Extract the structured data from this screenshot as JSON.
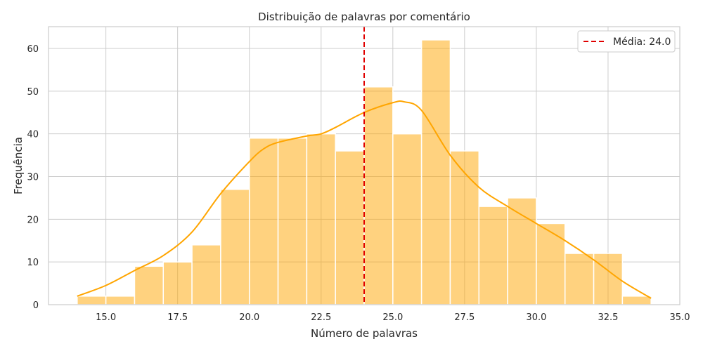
{
  "chart_data": {
    "type": "bar",
    "title": "Distribuição de palavras por comentário",
    "xlabel": "Número de palavras",
    "ylabel": "Frequência",
    "xlim": [
      13.0,
      35.0
    ],
    "ylim": [
      0,
      65.1
    ],
    "xticks": [
      "15.0",
      "17.5",
      "20.0",
      "22.5",
      "25.0",
      "27.5",
      "30.0",
      "32.5",
      "35.0"
    ],
    "yticks": [
      "0",
      "10",
      "20",
      "30",
      "40",
      "50",
      "60"
    ],
    "grid": true,
    "bins": [
      {
        "start": 14,
        "end": 15,
        "count": 2
      },
      {
        "start": 15,
        "end": 16,
        "count": 2
      },
      {
        "start": 16,
        "end": 17,
        "count": 9
      },
      {
        "start": 17,
        "end": 18,
        "count": 10
      },
      {
        "start": 18,
        "end": 19,
        "count": 14
      },
      {
        "start": 19,
        "end": 20,
        "count": 27
      },
      {
        "start": 20,
        "end": 21,
        "count": 39
      },
      {
        "start": 21,
        "end": 22,
        "count": 39
      },
      {
        "start": 22,
        "end": 23,
        "count": 40
      },
      {
        "start": 23,
        "end": 24,
        "count": 36
      },
      {
        "start": 24,
        "end": 25,
        "count": 51
      },
      {
        "start": 25,
        "end": 26,
        "count": 40
      },
      {
        "start": 26,
        "end": 27,
        "count": 62
      },
      {
        "start": 27,
        "end": 28,
        "count": 36
      },
      {
        "start": 28,
        "end": 29,
        "count": 23
      },
      {
        "start": 29,
        "end": 30,
        "count": 25
      },
      {
        "start": 30,
        "end": 31,
        "count": 19
      },
      {
        "start": 31,
        "end": 32,
        "count": 12
      },
      {
        "start": 32,
        "end": 33,
        "count": 12
      },
      {
        "start": 33,
        "end": 34,
        "count": 2
      }
    ],
    "kde": {
      "x": [
        14,
        15,
        16,
        17,
        18,
        19,
        20,
        20.5,
        21,
        22,
        22.5,
        23,
        24,
        25,
        25.4,
        26,
        27,
        28,
        29,
        30,
        31,
        32,
        33,
        34
      ],
      "y": [
        2,
        4.5,
        8,
        11.5,
        17,
        26,
        33.5,
        36.5,
        38,
        39.5,
        40,
        41.5,
        45,
        47.3,
        47.5,
        45.5,
        35,
        27.5,
        23,
        19,
        15,
        10.5,
        5.5,
        1.5
      ]
    },
    "mean_line": {
      "x": 24.0,
      "label": "Média: 24.0"
    },
    "legend": {
      "position": "top-right",
      "entries": [
        "Média: 24.0"
      ]
    },
    "colors": {
      "bars": "#ffa500",
      "kde": "#ffa500",
      "mean": "#e00000",
      "grid": "#cccccc",
      "frame": "#cccccc"
    }
  }
}
